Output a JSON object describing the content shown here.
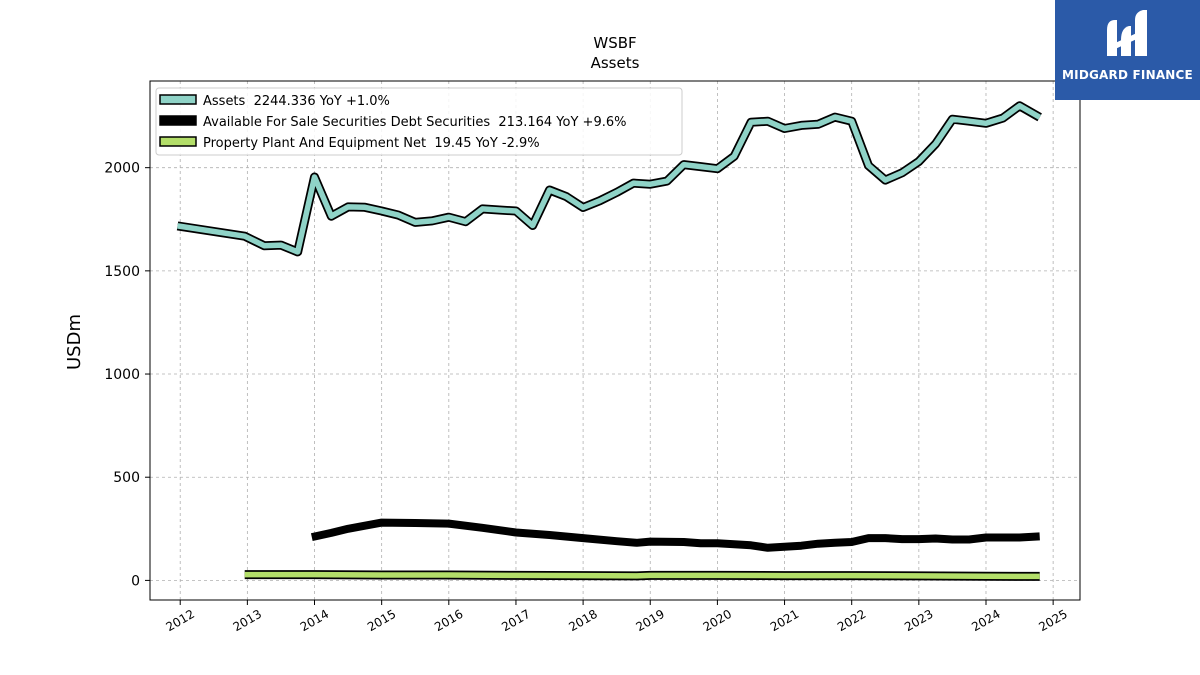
{
  "chart_data": {
    "type": "line",
    "title": "WSBF",
    "subtitle": "Assets",
    "ylabel": "USDm",
    "xlabel": "",
    "xlim": [
      2011.55,
      2025.4
    ],
    "ylim": [
      -95,
      2420
    ],
    "grid": true,
    "legend_position": "top-left",
    "x_ticks": [
      "2012",
      "2013",
      "2014",
      "2015",
      "2016",
      "2017",
      "2018",
      "2019",
      "2020",
      "2021",
      "2022",
      "2023",
      "2024",
      "2025"
    ],
    "y_ticks": [
      "0",
      "500",
      "1000",
      "1500",
      "2000"
    ],
    "series": [
      {
        "name": "Assets",
        "legend_label": "Assets  2244.336 YoY +1.0%",
        "color": "#8fd3c7",
        "style": "outlined",
        "points": [
          [
            2011.96,
            1718
          ],
          [
            2012.96,
            1668
          ],
          [
            2013.25,
            1622
          ],
          [
            2013.5,
            1625
          ],
          [
            2013.75,
            1592
          ],
          [
            2014.0,
            1955
          ],
          [
            2014.25,
            1765
          ],
          [
            2014.5,
            1810
          ],
          [
            2014.75,
            1808
          ],
          [
            2015.0,
            1790
          ],
          [
            2015.25,
            1770
          ],
          [
            2015.5,
            1735
          ],
          [
            2015.75,
            1742
          ],
          [
            2016.0,
            1760
          ],
          [
            2016.25,
            1738
          ],
          [
            2016.5,
            1800
          ],
          [
            2016.75,
            1795
          ],
          [
            2017.0,
            1790
          ],
          [
            2017.25,
            1720
          ],
          [
            2017.5,
            1892
          ],
          [
            2017.75,
            1860
          ],
          [
            2018.0,
            1807
          ],
          [
            2018.25,
            1840
          ],
          [
            2018.5,
            1880
          ],
          [
            2018.75,
            1925
          ],
          [
            2019.0,
            1920
          ],
          [
            2019.25,
            1935
          ],
          [
            2019.5,
            2015
          ],
          [
            2019.75,
            2005
          ],
          [
            2020.0,
            1995
          ],
          [
            2020.25,
            2055
          ],
          [
            2020.5,
            2220
          ],
          [
            2020.75,
            2225
          ],
          [
            2021.0,
            2190
          ],
          [
            2021.25,
            2205
          ],
          [
            2021.5,
            2210
          ],
          [
            2021.75,
            2245
          ],
          [
            2022.0,
            2225
          ],
          [
            2022.25,
            2010
          ],
          [
            2022.5,
            1940
          ],
          [
            2022.75,
            1975
          ],
          [
            2023.0,
            2030
          ],
          [
            2023.25,
            2115
          ],
          [
            2023.5,
            2235
          ],
          [
            2023.75,
            2225
          ],
          [
            2024.0,
            2215
          ],
          [
            2024.25,
            2240
          ],
          [
            2024.5,
            2300
          ],
          [
            2024.8,
            2244
          ]
        ]
      },
      {
        "name": "Available For Sale Securities Debt Securities",
        "legend_label": "Available For Sale Securities Debt Securities  213.164 YoY +9.6%",
        "color": "#000000",
        "style": "solid",
        "points": [
          [
            2013.96,
            210
          ],
          [
            2014.25,
            230
          ],
          [
            2014.5,
            250
          ],
          [
            2014.75,
            265
          ],
          [
            2015.0,
            280
          ],
          [
            2015.5,
            278
          ],
          [
            2016.0,
            275
          ],
          [
            2016.5,
            255
          ],
          [
            2017.0,
            232
          ],
          [
            2017.5,
            220
          ],
          [
            2018.0,
            205
          ],
          [
            2018.5,
            190
          ],
          [
            2018.8,
            182
          ],
          [
            2019.0,
            188
          ],
          [
            2019.5,
            186
          ],
          [
            2019.75,
            180
          ],
          [
            2020.0,
            180
          ],
          [
            2020.5,
            170
          ],
          [
            2020.75,
            158
          ],
          [
            2021.0,
            163
          ],
          [
            2021.25,
            168
          ],
          [
            2021.5,
            178
          ],
          [
            2021.75,
            182
          ],
          [
            2022.0,
            186
          ],
          [
            2022.25,
            205
          ],
          [
            2022.5,
            205
          ],
          [
            2022.75,
            200
          ],
          [
            2023.0,
            200
          ],
          [
            2023.25,
            203
          ],
          [
            2023.5,
            198
          ],
          [
            2023.75,
            198
          ],
          [
            2024.0,
            208
          ],
          [
            2024.5,
            208
          ],
          [
            2024.8,
            213
          ]
        ]
      },
      {
        "name": "Property Plant And Equipment Net",
        "legend_label": "Property Plant And Equipment Net  19.45 YoY -2.9%",
        "color": "#b3de69",
        "style": "outlined",
        "points": [
          [
            2012.96,
            28
          ],
          [
            2014.0,
            28
          ],
          [
            2015.0,
            26
          ],
          [
            2016.0,
            26
          ],
          [
            2017.0,
            24
          ],
          [
            2018.0,
            23
          ],
          [
            2018.8,
            22
          ],
          [
            2019.0,
            24
          ],
          [
            2020.0,
            24
          ],
          [
            2021.0,
            23
          ],
          [
            2022.0,
            23
          ],
          [
            2023.0,
            22
          ],
          [
            2024.0,
            20
          ],
          [
            2024.8,
            19.45
          ]
        ]
      }
    ]
  },
  "logo": {
    "text": "MIDGARD FINANCE",
    "background": "#2b5aa8"
  }
}
